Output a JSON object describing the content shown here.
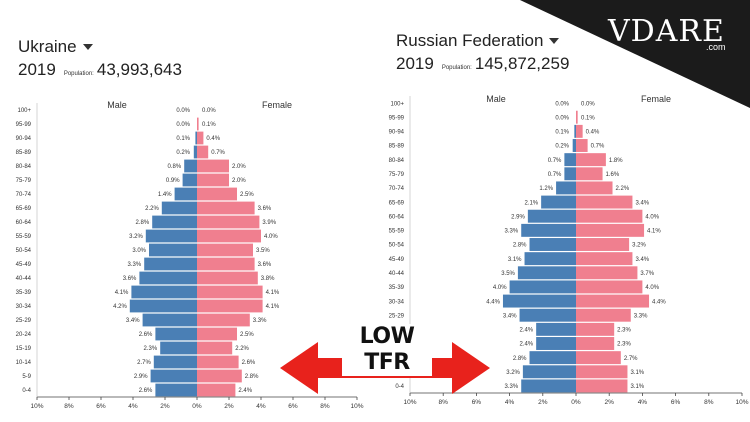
{
  "brand": {
    "logo": "VDARE",
    "suffix": ".com"
  },
  "annotation": {
    "label": "LOW TFR",
    "color": "#e8221c"
  },
  "colors": {
    "male": "#4a7fb5",
    "female": "#f07f8f"
  },
  "chart_data": [
    {
      "type": "bar",
      "country": "Ukraine",
      "year": "2019",
      "population_label": "Population:",
      "population": "43,993,643",
      "series_labels": {
        "left": "Male",
        "right": "Female"
      },
      "categories": [
        "100+",
        "95-99",
        "90-94",
        "85-89",
        "80-84",
        "75-79",
        "70-74",
        "65-69",
        "60-64",
        "55-59",
        "50-54",
        "45-49",
        "40-44",
        "35-39",
        "30-34",
        "25-29",
        "20-24",
        "15-19",
        "10-14",
        "5-9",
        "0-4"
      ],
      "series": [
        {
          "name": "Male",
          "values": [
            0.0,
            0.0,
            0.1,
            0.2,
            0.8,
            0.9,
            1.4,
            2.2,
            2.8,
            3.2,
            3.0,
            3.3,
            3.6,
            4.1,
            4.2,
            3.4,
            2.6,
            2.3,
            2.7,
            2.9,
            2.6
          ]
        },
        {
          "name": "Female",
          "values": [
            0.0,
            0.1,
            0.4,
            0.7,
            2.0,
            2.0,
            2.5,
            3.6,
            3.9,
            4.0,
            3.5,
            3.6,
            3.8,
            4.1,
            4.1,
            3.3,
            2.5,
            2.2,
            2.6,
            2.8,
            2.4
          ]
        }
      ],
      "x_ticks": [
        "10%",
        "8%",
        "6%",
        "4%",
        "2%",
        "0%",
        "2%",
        "4%",
        "6%",
        "8%",
        "10%"
      ],
      "xlim": [
        -10,
        10
      ]
    },
    {
      "type": "bar",
      "country": "Russian Federation",
      "year": "2019",
      "population_label": "Population:",
      "population": "145,872,259",
      "series_labels": {
        "left": "Male",
        "right": "Female"
      },
      "categories": [
        "100+",
        "95-99",
        "90-94",
        "85-89",
        "80-84",
        "75-79",
        "70-74",
        "65-69",
        "60-64",
        "55-59",
        "50-54",
        "45-49",
        "40-44",
        "35-39",
        "30-34",
        "25-29",
        "20-24",
        "15-19",
        "10-14",
        "5-9",
        "0-4"
      ],
      "series": [
        {
          "name": "Male",
          "values": [
            0.0,
            0.0,
            0.1,
            0.2,
            0.7,
            0.7,
            1.2,
            2.1,
            2.9,
            3.3,
            2.8,
            3.1,
            3.5,
            4.0,
            4.4,
            3.4,
            2.4,
            2.4,
            2.8,
            3.2,
            3.3
          ]
        },
        {
          "name": "Female",
          "values": [
            0.0,
            0.1,
            0.4,
            0.7,
            1.8,
            1.6,
            2.2,
            3.4,
            4.0,
            4.1,
            3.2,
            3.4,
            3.7,
            4.0,
            4.4,
            3.3,
            2.3,
            2.3,
            2.7,
            3.1,
            3.1
          ]
        }
      ],
      "x_ticks": [
        "10%",
        "8%",
        "6%",
        "4%",
        "2%",
        "0%",
        "2%",
        "4%",
        "6%",
        "8%",
        "10%"
      ],
      "xlim": [
        -10,
        10
      ]
    }
  ]
}
